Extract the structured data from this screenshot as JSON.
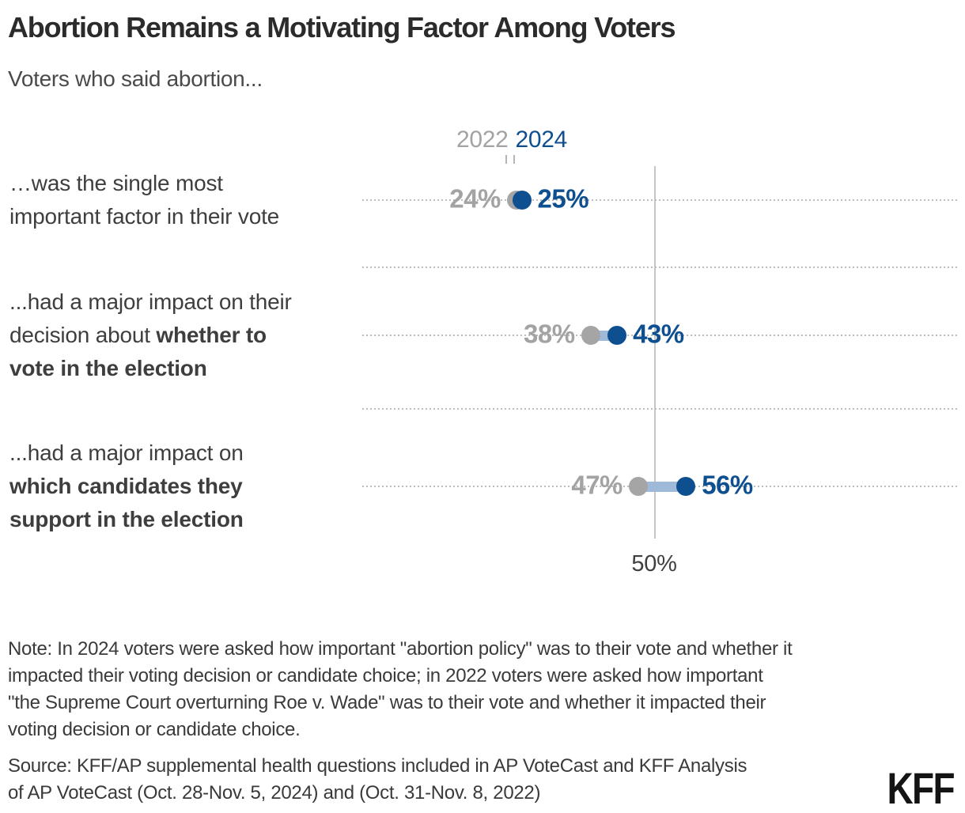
{
  "title": "Abortion Remains a Motivating Factor Among Voters",
  "subtitle": "Voters who said abortion...",
  "colors": {
    "blue": "#0E4F90",
    "gray": "#A5A5A5",
    "gray_text": "#A3A3A3",
    "connector": "#9FB9D8",
    "reference_line": "#C6C6C6",
    "gridline_dotted": "#BCBCBC",
    "logo_black": "#141414"
  },
  "chart_data": {
    "type": "dumbbell",
    "title": "Abortion Remains a Motivating Factor Among Voters",
    "subtitle": "Voters who said abortion...",
    "legend_position": "top-center",
    "grid": "dotted-horizontal",
    "value_suffix": "%",
    "axis": {
      "reference_line_value": 50,
      "reference_line_label": "50%"
    },
    "xlim": [
      -5,
      107
    ],
    "categories": [
      {
        "label": "…was the single most important factor in their vote",
        "segments": [
          {
            "text": "…was the single most\nimportant factor in their vote",
            "bold": false
          }
        ]
      },
      {
        "label": "...had a major impact on their decision about whether to vote in the election",
        "segments": [
          {
            "text": "...had a major impact on their\ndecision about ",
            "bold": false
          },
          {
            "text": "whether to\nvote in the election",
            "bold": true
          }
        ]
      },
      {
        "label": "...had a major impact on which candidates they support in the election",
        "segments": [
          {
            "text": "...had a major impact on\n",
            "bold": false
          },
          {
            "text": "which candidates they\nsupport in the election",
            "bold": true
          }
        ]
      }
    ],
    "series": [
      {
        "name": "2022",
        "color": "#A5A5A5",
        "values": [
          24,
          38,
          47
        ]
      },
      {
        "name": "2024",
        "color": "#0E4F90",
        "values": [
          25,
          43,
          56
        ]
      }
    ]
  },
  "note": "Note: In 2024 voters were asked how important \"abortion policy\" was to their vote and whether it impacted their voting decision or candidate choice; in 2022 voters were asked how important \"the Supreme Court overturning Roe v. Wade\" was to their vote and whether it impacted their voting decision or candidate choice.",
  "source": "Source: KFF/AP supplemental health questions included in AP VoteCast and KFF Analysis of AP VoteCast (Oct. 28-Nov. 5, 2024) and (Oct. 31-Nov. 8, 2022)",
  "logo": "KFF"
}
